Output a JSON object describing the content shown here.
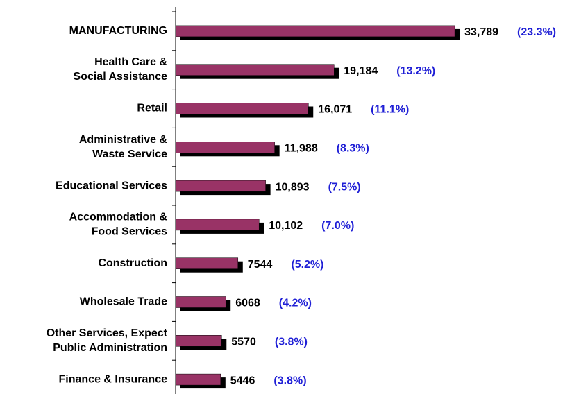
{
  "chart_data": {
    "type": "bar",
    "orientation": "horizontal",
    "categories": [
      "MANUFACTURING",
      "Health Care &\nSocial Assistance",
      "Retail",
      "Administrative &\nWaste Service",
      "Educational Services",
      "Accommodation &\nFood Services",
      "Construction",
      "Wholesale Trade",
      "Other Services, Expect\nPublic Administration",
      "Finance & Insurance"
    ],
    "values": [
      33789,
      19184,
      16071,
      11988,
      10893,
      10102,
      7544,
      6068,
      5570,
      5446
    ],
    "value_labels": [
      "33,789",
      "19,184",
      "16,071",
      "11,988",
      "10,893",
      "10,102",
      "7544",
      "6068",
      "5570",
      "5446"
    ],
    "share_labels": [
      "(23.3%)",
      "(13.2%)",
      "(11.1%)",
      "(8.3%)",
      "(7.5%)",
      "(7.0%)",
      "(5.2%)",
      "(4.2%)",
      "(3.8%)",
      "(3.8%)"
    ],
    "color": "#993366",
    "shadow_color": "#000000",
    "share_color": "#1f1fd6",
    "xlim": [
      0,
      40000
    ]
  }
}
